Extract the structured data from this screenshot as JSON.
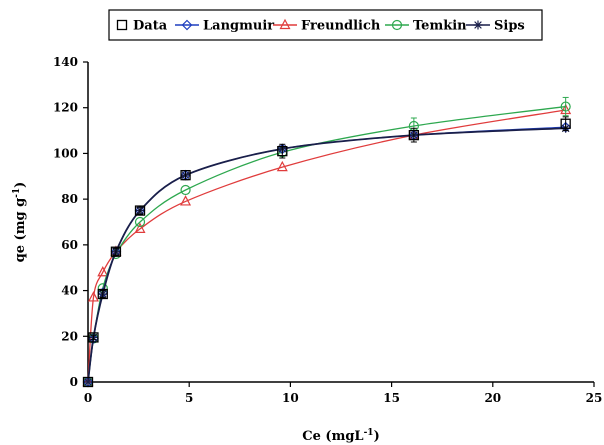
{
  "chart_data": {
    "type": "scatter",
    "title": "",
    "xlabel": "Ce (mgL",
    "xlabel_sup": "-1",
    "xlabel_end": ")",
    "ylabel": "qe (mg g",
    "ylabel_sup": "-1",
    "ylabel_end": ")",
    "xlim": [
      0,
      25
    ],
    "ylim": [
      0,
      140
    ],
    "xticks": [
      0,
      5,
      10,
      15,
      20,
      25
    ],
    "yticks": [
      0,
      20,
      40,
      60,
      80,
      100,
      120,
      140
    ],
    "grid": false,
    "legend_position": "top",
    "series": [
      {
        "name": "Data",
        "kind": "markers",
        "marker": "square",
        "color": "#000000",
        "x": [
          0,
          0.27,
          0.73,
          1.38,
          2.57,
          4.82,
          9.6,
          16.1,
          23.6
        ],
        "y": [
          0,
          19.5,
          38.5,
          57.0,
          75.0,
          90.5,
          101.0,
          108.0,
          113.0
        ],
        "yerr": [
          0,
          1.0,
          1.5,
          1.5,
          1.5,
          2.0,
          3.0,
          3.0,
          3.0
        ]
      },
      {
        "name": "Langmuir",
        "kind": "line+markers",
        "marker": "diamond",
        "color": "#1f3fbf",
        "x": [
          0,
          0.27,
          0.73,
          1.38,
          2.57,
          4.82,
          9.6,
          16.1,
          23.6
        ],
        "y": [
          0,
          19.0,
          39.0,
          57.0,
          75.0,
          90.5,
          102.0,
          108.0,
          111.5
        ]
      },
      {
        "name": "Freundlich",
        "kind": "line+markers",
        "marker": "triangle",
        "color": "#e03c3c",
        "x": [
          0,
          0.27,
          0.73,
          1.38,
          2.57,
          4.82,
          9.6,
          16.1,
          23.6
        ],
        "y": [
          0,
          37.0,
          48.0,
          57.0,
          67.0,
          79.0,
          94.0,
          108.0,
          119.0
        ]
      },
      {
        "name": "Temkin",
        "kind": "line+markers",
        "marker": "circle",
        "color": "#2ea84f",
        "x": [
          0,
          0.27,
          0.73,
          1.38,
          2.57,
          4.82,
          9.6,
          16.1,
          23.6
        ],
        "y": [
          0,
          19.0,
          41.0,
          56.0,
          70.0,
          84.0,
          100.5,
          112.0,
          120.5
        ],
        "yerr": [
          0,
          0,
          0,
          0,
          0,
          0,
          0,
          3.5,
          4.0
        ]
      },
      {
        "name": "Sips",
        "kind": "line+markers",
        "marker": "asterisk",
        "color": "#1a1f4a",
        "x": [
          0,
          0.27,
          0.73,
          1.38,
          2.57,
          4.82,
          9.6,
          16.1,
          23.6
        ],
        "y": [
          0,
          19.5,
          38.5,
          57.0,
          75.0,
          90.5,
          102.0,
          108.0,
          111.0
        ]
      }
    ]
  }
}
